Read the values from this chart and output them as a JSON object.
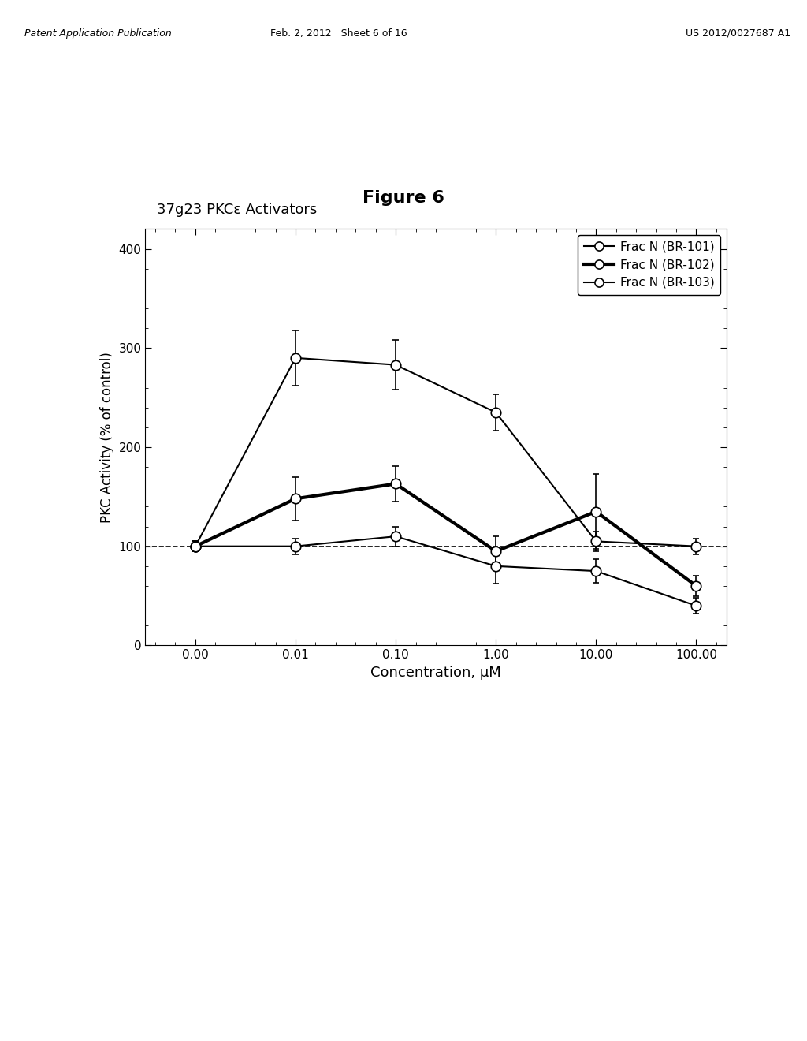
{
  "title_figure": "Figure 6",
  "chart_title": "37g23 PKCε Activators",
  "xlabel": "Concentration, μM",
  "ylabel": "PKC Activity (% of control)",
  "x_values": [
    0.001,
    0.01,
    0.1,
    1.0,
    10.0,
    100.0
  ],
  "x_tick_labels": [
    "0.00",
    "0.01",
    "0.10",
    "1.00",
    "10.00",
    "100.00"
  ],
  "ylim": [
    0,
    420
  ],
  "yticks": [
    0,
    100,
    200,
    300,
    400
  ],
  "series": [
    {
      "label": "Frac N (BR-101)",
      "y": [
        100,
        290,
        283,
        235,
        105,
        100
      ],
      "yerr": [
        5,
        28,
        25,
        18,
        10,
        8
      ],
      "linewidth": 1.5,
      "markersize": 9
    },
    {
      "label": "Frac N (BR-102)",
      "y": [
        100,
        148,
        163,
        95,
        135,
        60
      ],
      "yerr": [
        5,
        22,
        18,
        15,
        38,
        10
      ],
      "linewidth": 3.0,
      "markersize": 9
    },
    {
      "label": "Frac N (BR-103)",
      "y": [
        100,
        100,
        110,
        80,
        75,
        40
      ],
      "yerr": [
        5,
        8,
        10,
        18,
        12,
        8
      ],
      "linewidth": 1.5,
      "markersize": 9
    }
  ],
  "background_color": "#ffffff",
  "header_text_left": "Patent Application Publication",
  "header_text_mid": "Feb. 2, 2012   Sheet 6 of 16",
  "header_text_right": "US 2012/0027687 A1"
}
